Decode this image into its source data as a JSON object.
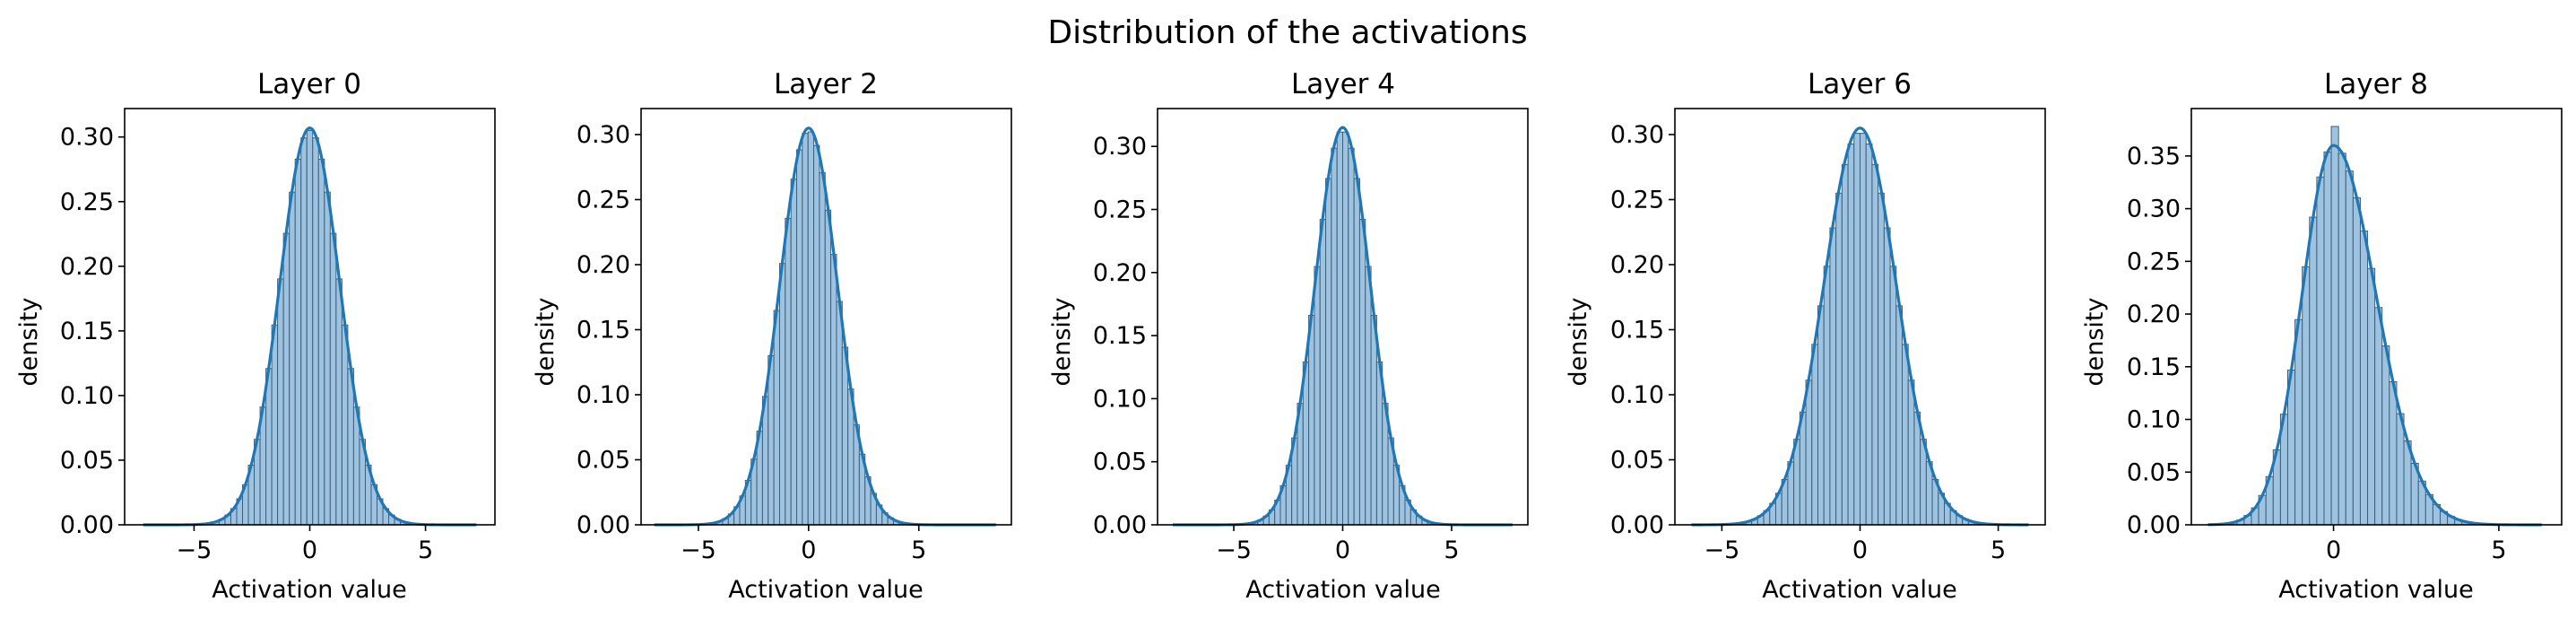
{
  "figure": {
    "suptitle": "Distribution of the activations",
    "colors": {
      "bar_fill": "#9dc3e0",
      "bar_edge": "#3e5f7b",
      "kde_line": "#1f77b4",
      "axis": "#000000"
    }
  },
  "chart_data": [
    {
      "type": "bar",
      "title": "Layer 0",
      "xlabel": "Activation value",
      "ylabel": "density",
      "xlim": [
        -8.0,
        8.0
      ],
      "ylim": [
        0,
        0.322
      ],
      "xticks": [
        -5,
        0,
        5
      ],
      "xtick_labels": [
        "−5",
        "0",
        "5"
      ],
      "yticks": [
        0.0,
        0.05,
        0.1,
        0.15,
        0.2,
        0.25,
        0.3
      ],
      "ytick_labels": [
        "0.00",
        "0.05",
        "0.10",
        "0.15",
        "0.20",
        "0.25",
        "0.30"
      ],
      "grid": false,
      "hist": {
        "x_min": -7.2,
        "x_max": 7.2,
        "bins": 57,
        "peak": 0.305,
        "sigma": 1.3,
        "skew": 0
      },
      "kde": {
        "peak": 0.307,
        "sigma": 1.3,
        "skew": 0
      }
    },
    {
      "type": "bar",
      "title": "Layer 2",
      "xlabel": "Activation value",
      "ylabel": "density",
      "xlim": [
        -7.6,
        9.2
      ],
      "ylim": [
        0,
        0.32
      ],
      "xticks": [
        -5,
        0,
        5
      ],
      "xtick_labels": [
        "−5",
        "0",
        "5"
      ],
      "yticks": [
        0.0,
        0.05,
        0.1,
        0.15,
        0.2,
        0.25,
        0.3
      ],
      "ytick_labels": [
        "0.00",
        "0.05",
        "0.10",
        "0.15",
        "0.20",
        "0.25",
        "0.30"
      ],
      "grid": false,
      "hist": {
        "x_min": -7.0,
        "x_max": 8.5,
        "bins": 60,
        "peak": 0.303,
        "sigma": 1.31,
        "skew": 0
      },
      "kde": {
        "peak": 0.305,
        "sigma": 1.31,
        "skew": 0
      }
    },
    {
      "type": "bar",
      "title": "Layer 4",
      "xlabel": "Activation value",
      "ylabel": "density",
      "xlim": [
        -8.5,
        8.5
      ],
      "ylim": [
        0,
        0.33
      ],
      "xticks": [
        -5,
        0,
        5
      ],
      "xtick_labels": [
        "−5",
        "0",
        "5"
      ],
      "yticks": [
        0.0,
        0.05,
        0.1,
        0.15,
        0.2,
        0.25,
        0.3
      ],
      "ytick_labels": [
        "0.00",
        "0.05",
        "0.10",
        "0.15",
        "0.20",
        "0.25",
        "0.30"
      ],
      "grid": false,
      "hist": {
        "x_min": -7.8,
        "x_max": 7.8,
        "bins": 60,
        "peak": 0.313,
        "sigma": 1.27,
        "skew": 0
      },
      "kde": {
        "peak": 0.315,
        "sigma": 1.27,
        "skew": 0
      }
    },
    {
      "type": "bar",
      "title": "Layer 6",
      "xlabel": "Activation value",
      "ylabel": "density",
      "xlim": [
        -6.7,
        6.7
      ],
      "ylim": [
        0,
        0.32
      ],
      "xticks": [
        -5,
        0,
        5
      ],
      "xtick_labels": [
        "−5",
        "0",
        "5"
      ],
      "yticks": [
        0.0,
        0.05,
        0.1,
        0.15,
        0.2,
        0.25,
        0.3
      ],
      "ytick_labels": [
        "0.00",
        "0.05",
        "0.10",
        "0.15",
        "0.20",
        "0.25",
        "0.30"
      ],
      "grid": false,
      "hist": {
        "x_min": -6.1,
        "x_max": 6.1,
        "bins": 56,
        "peak": 0.302,
        "sigma": 1.31,
        "skew": 0
      },
      "kde": {
        "peak": 0.305,
        "sigma": 1.31,
        "skew": 0
      }
    },
    {
      "type": "bar",
      "title": "Layer 8",
      "xlabel": "Activation value",
      "ylabel": "density",
      "xlim": [
        -4.3,
        6.9
      ],
      "ylim": [
        0,
        0.395
      ],
      "xticks": [
        0,
        5
      ],
      "xtick_labels": [
        "0",
        "5"
      ],
      "yticks": [
        0.0,
        0.05,
        0.1,
        0.15,
        0.2,
        0.25,
        0.3,
        0.35
      ],
      "ytick_labels": [
        "0.00",
        "0.05",
        "0.10",
        "0.15",
        "0.20",
        "0.25",
        "0.30",
        "0.35"
      ],
      "grid": false,
      "hist": {
        "x_min": -3.8,
        "x_max": 6.3,
        "bins": 46,
        "peak": 0.36,
        "sigma": 1.12,
        "skew": 0.15,
        "spike_value": 0.378
      },
      "kde": {
        "peak": 0.36,
        "sigma": 1.12,
        "skew": 0.15
      }
    }
  ]
}
